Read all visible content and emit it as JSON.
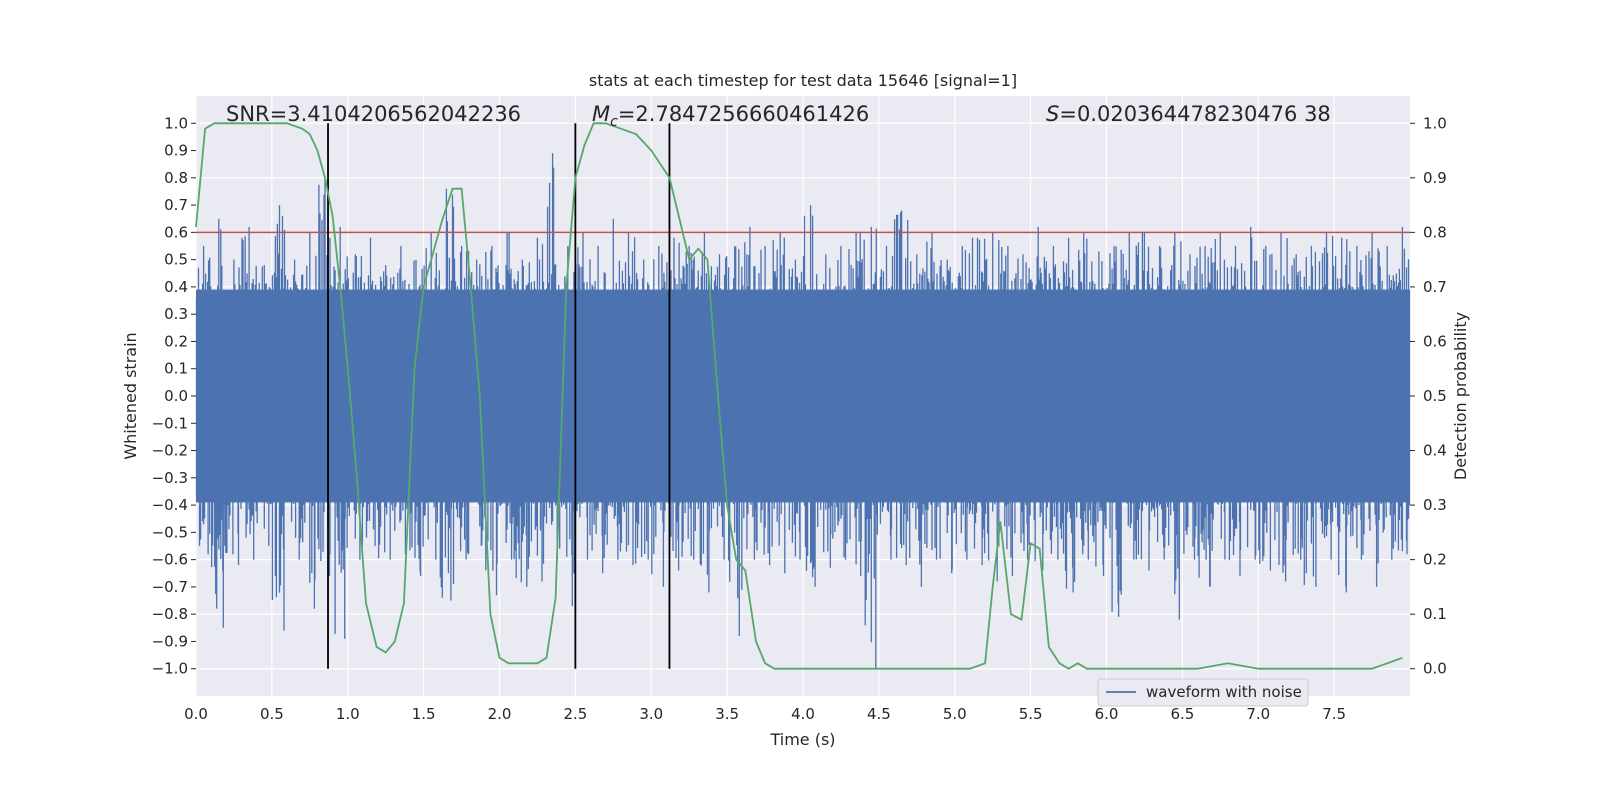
{
  "chart_data": {
    "type": "line",
    "title": "stats at each timestep for test data 15646 [signal=1]",
    "xlabel": "Time (s)",
    "ylabel": "Whitened strain",
    "y2label": "Detection probability",
    "xlim": [
      0.0,
      8.0
    ],
    "ylim": [
      -1.1,
      1.1
    ],
    "y2lim": [
      -0.05,
      1.05
    ],
    "xticks": [
      0.0,
      0.5,
      1.0,
      1.5,
      2.0,
      2.5,
      3.0,
      3.5,
      4.0,
      4.5,
      5.0,
      5.5,
      6.0,
      6.5,
      7.0,
      7.5
    ],
    "xtick_labels": [
      "0.0",
      "0.5",
      "1.0",
      "1.5",
      "2.0",
      "2.5",
      "3.0",
      "3.5",
      "4.0",
      "4.5",
      "5.0",
      "5.5",
      "6.0",
      "6.5",
      "7.0",
      "7.5"
    ],
    "yticks": [
      -1.0,
      -0.9,
      -0.8,
      -0.7,
      -0.6,
      -0.5,
      -0.4,
      -0.3,
      -0.2,
      -0.1,
      0.0,
      0.1,
      0.2,
      0.3,
      0.4,
      0.5,
      0.6,
      0.7,
      0.8,
      0.9,
      1.0
    ],
    "ytick_labels": [
      "−1.0",
      "−0.9",
      "−0.8",
      "−0.7",
      "−0.6",
      "−0.5",
      "−0.4",
      "−0.3",
      "−0.2",
      "−0.1",
      "0.0",
      "0.1",
      "0.2",
      "0.3",
      "0.4",
      "0.5",
      "0.6",
      "0.7",
      "0.8",
      "0.9",
      "1.0"
    ],
    "y2ticks": [
      0.0,
      0.1,
      0.2,
      0.3,
      0.4,
      0.5,
      0.6,
      0.7,
      0.8,
      0.9,
      1.0
    ],
    "y2tick_labels": [
      "0.0",
      "0.1",
      "0.2",
      "0.3",
      "0.4",
      "0.5",
      "0.6",
      "0.7",
      "0.8",
      "0.9",
      "1.0"
    ],
    "annotations": {
      "snr": "SNR=3.4104206562042236",
      "mc_symbol": "M",
      "mc_sub": "c",
      "mc_value": "=2.7847256660461426",
      "s_symbol": "S",
      "s_value": "=0.020364478230476 38"
    },
    "threshold": {
      "value": 0.8,
      "color": "#c44e52"
    },
    "vertical_lines": [
      0.87,
      2.5,
      3.12
    ],
    "waveform": {
      "name": "waveform with noise",
      "color": "#4c72b0",
      "envelope_upper": [
        0.55,
        0.65,
        0.5,
        0.62,
        0.48,
        0.7,
        0.5,
        0.6,
        0.8,
        0.62,
        0.52,
        0.58,
        0.48,
        0.55,
        0.5,
        0.6,
        0.76,
        0.55,
        0.5,
        0.55,
        0.6,
        0.5,
        0.58,
        0.89,
        0.55,
        0.6,
        0.55,
        0.65,
        0.6,
        0.5,
        0.55,
        0.58,
        0.55,
        0.6,
        0.52,
        0.55,
        0.62,
        0.55,
        0.6,
        0.5,
        0.7,
        0.52,
        0.55,
        0.6,
        0.62,
        0.55,
        0.68,
        0.52,
        0.6,
        0.5,
        0.55,
        0.58,
        0.6,
        0.55,
        0.52,
        0.62,
        0.55,
        0.58,
        0.6,
        0.53,
        0.55,
        0.6,
        0.6,
        0.55,
        0.6,
        0.52,
        0.55,
        0.6,
        0.55,
        0.62,
        0.55,
        0.6,
        0.52,
        0.55,
        0.6,
        0.58,
        0.55,
        0.6,
        0.55,
        0.62
      ],
      "envelope_lower": [
        -0.58,
        -0.85,
        -0.62,
        -0.6,
        -0.55,
        -0.86,
        -0.6,
        -0.78,
        -0.66,
        -0.89,
        -0.6,
        -0.55,
        -0.6,
        -0.58,
        -0.66,
        -0.6,
        -0.75,
        -0.6,
        -0.55,
        -0.73,
        -0.6,
        -0.7,
        -0.68,
        -0.6,
        -0.77,
        -0.6,
        -0.65,
        -0.6,
        -0.62,
        -0.6,
        -0.7,
        -0.64,
        -0.6,
        -0.72,
        -0.6,
        -0.88,
        -0.6,
        -0.62,
        -0.65,
        -0.6,
        -0.7,
        -0.63,
        -0.6,
        -0.66,
        -1.0,
        -0.6,
        -0.62,
        -0.7,
        -0.6,
        -0.65,
        -0.6,
        -0.62,
        -0.68,
        -0.66,
        -0.6,
        -0.64,
        -0.6,
        -0.72,
        -0.6,
        -0.66,
        -0.81,
        -0.6,
        -0.64,
        -0.6,
        -0.82,
        -0.6,
        -0.7,
        -0.6,
        -0.66,
        -0.6,
        -0.64,
        -0.68,
        -0.6,
        -0.7,
        -0.6,
        -0.72,
        -0.6,
        -0.7,
        -0.6,
        -0.58
      ]
    },
    "detection": {
      "color": "#55a868",
      "x": [
        0.0,
        0.06,
        0.12,
        0.2,
        0.3,
        0.4,
        0.5,
        0.6,
        0.7,
        0.75,
        0.8,
        0.85,
        0.9,
        0.95,
        1.0,
        1.06,
        1.12,
        1.19,
        1.25,
        1.31,
        1.37,
        1.44,
        1.5,
        1.56,
        1.62,
        1.69,
        1.75,
        1.81,
        1.87,
        1.94,
        2.0,
        2.06,
        2.12,
        2.19,
        2.25,
        2.31,
        2.37,
        2.44,
        2.5,
        2.56,
        2.62,
        2.7,
        2.8,
        2.9,
        3.0,
        3.12,
        3.19,
        3.25,
        3.31,
        3.37,
        3.44,
        3.5,
        3.56,
        3.62,
        3.69,
        3.75,
        3.81,
        3.87,
        4.0,
        4.2,
        4.4,
        4.5,
        4.6,
        4.8,
        5.0,
        5.1,
        5.2,
        5.25,
        5.3,
        5.37,
        5.44,
        5.5,
        5.56,
        5.62,
        5.69,
        5.75,
        5.81,
        5.87,
        6.0,
        6.2,
        6.4,
        6.6,
        6.8,
        7.0,
        7.2,
        7.4,
        7.6,
        7.75,
        7.85,
        7.95
      ],
      "y": [
        0.81,
        0.99,
        1.0,
        1.0,
        1.0,
        1.0,
        1.0,
        1.0,
        0.99,
        0.98,
        0.95,
        0.9,
        0.83,
        0.7,
        0.55,
        0.35,
        0.12,
        0.04,
        0.03,
        0.05,
        0.12,
        0.55,
        0.7,
        0.76,
        0.82,
        0.88,
        0.88,
        0.7,
        0.5,
        0.1,
        0.02,
        0.01,
        0.01,
        0.01,
        0.01,
        0.02,
        0.13,
        0.7,
        0.9,
        0.96,
        1.0,
        1.0,
        0.99,
        0.98,
        0.95,
        0.9,
        0.82,
        0.75,
        0.77,
        0.75,
        0.5,
        0.3,
        0.2,
        0.18,
        0.05,
        0.01,
        0.0,
        0.0,
        0.0,
        0.0,
        0.0,
        0.0,
        0.0,
        0.0,
        0.0,
        0.0,
        0.01,
        0.15,
        0.27,
        0.1,
        0.09,
        0.23,
        0.22,
        0.04,
        0.01,
        0.0,
        0.01,
        0.0,
        0.0,
        0.0,
        0.0,
        0.0,
        0.01,
        0.0,
        0.0,
        0.0,
        0.0,
        0.0,
        0.01,
        0.02
      ]
    },
    "legend": {
      "label": "waveform with noise",
      "location": "lower-right"
    }
  }
}
